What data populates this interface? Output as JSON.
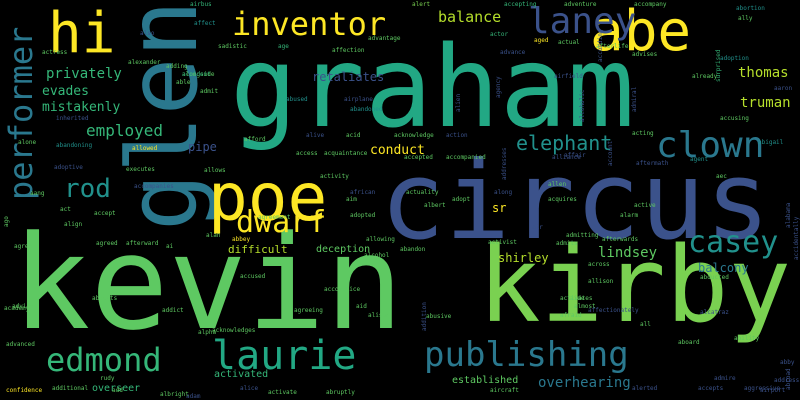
{
  "words": [
    {
      "t": "kevin",
      "c": "#5ec962"
    },
    {
      "t": "graham",
      "c": "#22a884"
    },
    {
      "t": "circus",
      "c": "#3b528b"
    },
    {
      "t": "kirby",
      "c": "#7ad151"
    },
    {
      "t": "glen",
      "c": "#2a788e"
    },
    {
      "t": "poe",
      "c": "#fde725"
    },
    {
      "t": "abe",
      "c": "#fde725"
    },
    {
      "t": "hi",
      "c": "#fde725"
    },
    {
      "t": "inventor",
      "c": "#fde725"
    },
    {
      "t": "laney",
      "c": "#3b528b"
    },
    {
      "t": "performer",
      "c": "#2a788e"
    },
    {
      "t": "publishing",
      "c": "#2a788e"
    },
    {
      "t": "laurie",
      "c": "#22a884"
    },
    {
      "t": "edmond",
      "c": "#35b779"
    },
    {
      "t": "casey",
      "c": "#21918c"
    },
    {
      "t": "clown",
      "c": "#2a788e"
    },
    {
      "t": "dwarf",
      "c": "#fde725"
    },
    {
      "t": "rod",
      "c": "#21918c"
    },
    {
      "t": "elephant",
      "c": "#21918c"
    },
    {
      "t": "employed",
      "c": "#35b779"
    },
    {
      "t": "balance",
      "c": "#b5de2b"
    },
    {
      "t": "privately",
      "c": "#35b779"
    },
    {
      "t": "thomas",
      "c": "#b5de2b"
    },
    {
      "t": "truman",
      "c": "#b5de2b"
    },
    {
      "t": "evades",
      "c": "#35b779"
    },
    {
      "t": "mistakenly",
      "c": "#35b779"
    },
    {
      "t": "retaliates",
      "c": "#3b528b"
    },
    {
      "t": "conduct",
      "c": "#fde725"
    },
    {
      "t": "lindsey",
      "c": "#5ec962"
    },
    {
      "t": "shirley",
      "c": "#b5de2b"
    },
    {
      "t": "overhearing",
      "c": "#2a788e"
    },
    {
      "t": "balcony",
      "c": "#2a788e"
    },
    {
      "t": "sr",
      "c": "#fde725"
    },
    {
      "t": "pipe",
      "c": "#3b528b"
    },
    {
      "t": "deception",
      "c": "#5ec962"
    },
    {
      "t": "difficult",
      "c": "#b5de2b"
    },
    {
      "t": "established",
      "c": "#5ec962"
    },
    {
      "t": "activated",
      "c": "#35b779"
    },
    {
      "t": "overseer",
      "c": "#35b779"
    },
    {
      "t": "alert",
      "c": "#7ad151"
    },
    {
      "t": "accepting",
      "c": "#35b779"
    },
    {
      "t": "adventure",
      "c": "#5ec962"
    },
    {
      "t": "accompany",
      "c": "#5ec962"
    },
    {
      "t": "abortion",
      "c": "#21918c"
    },
    {
      "t": "ally",
      "c": "#5ec962"
    },
    {
      "t": "airbus",
      "c": "#35b779"
    },
    {
      "t": "affect",
      "c": "#21918c"
    },
    {
      "t": "also",
      "c": "#3b528b"
    },
    {
      "t": "alongside",
      "c": "#5ec962"
    },
    {
      "t": "sadistic",
      "c": "#5ec962"
    },
    {
      "t": "age",
      "c": "#35b779"
    },
    {
      "t": "affection",
      "c": "#5ec962"
    },
    {
      "t": "advantage",
      "c": "#5ec962"
    },
    {
      "t": "actor",
      "c": "#35b779"
    },
    {
      "t": "aged",
      "c": "#fde725"
    },
    {
      "t": "actual",
      "c": "#5ec962"
    },
    {
      "t": "afterlife",
      "c": "#5ec962"
    },
    {
      "t": "advises",
      "c": "#5ec962"
    },
    {
      "t": "advance",
      "c": "#3b528b"
    },
    {
      "t": "actress",
      "c": "#5ec962"
    },
    {
      "t": "alexander",
      "c": "#5ec962"
    },
    {
      "t": "adding",
      "c": "#5ec962"
    },
    {
      "t": "able",
      "c": "#5ec962"
    },
    {
      "t": "accident",
      "c": "#35b779"
    },
    {
      "t": "airfield",
      "c": "#3b528b"
    },
    {
      "t": "already",
      "c": "#5ec962"
    },
    {
      "t": "adoption",
      "c": "#21918c"
    },
    {
      "t": "admit",
      "c": "#5ec962"
    },
    {
      "t": "abused",
      "c": "#21918c"
    },
    {
      "t": "airplane",
      "c": "#3b528b"
    },
    {
      "t": "abandoned",
      "c": "#21918c"
    },
    {
      "t": "inherited",
      "c": "#3b528b"
    },
    {
      "t": "surprised",
      "c": "#35b779"
    },
    {
      "t": "accusing",
      "c": "#5ec962"
    },
    {
      "t": "abigail",
      "c": "#21918c"
    },
    {
      "t": "alone",
      "c": "#5ec962"
    },
    {
      "t": "abandoning",
      "c": "#21918c"
    },
    {
      "t": "allowed",
      "c": "#fde725"
    },
    {
      "t": "alive",
      "c": "#3b528b"
    },
    {
      "t": "acid",
      "c": "#5ec962"
    },
    {
      "t": "acknowledge",
      "c": "#5ec962"
    },
    {
      "t": "action",
      "c": "#3b528b"
    },
    {
      "t": "acting",
      "c": "#5ec962"
    },
    {
      "t": "afford",
      "c": "#5ec962"
    },
    {
      "t": "access",
      "c": "#5ec962"
    },
    {
      "t": "acquaintance",
      "c": "#5ec962"
    },
    {
      "t": "accepted",
      "c": "#5ec962"
    },
    {
      "t": "accompanied",
      "c": "#5ec962"
    },
    {
      "t": "alliance",
      "c": "#3b528b"
    },
    {
      "t": "affair",
      "c": "#3b528b"
    },
    {
      "t": "aftermath",
      "c": "#3b528b"
    },
    {
      "t": "agent",
      "c": "#21918c"
    },
    {
      "t": "adoptive",
      "c": "#3b528b"
    },
    {
      "t": "executes",
      "c": "#5ec962"
    },
    {
      "t": "allows",
      "c": "#5ec962"
    },
    {
      "t": "activity",
      "c": "#5ec962"
    },
    {
      "t": "along",
      "c": "#3b528b"
    },
    {
      "t": "allen",
      "c": "#5ec962"
    },
    {
      "t": "aec",
      "c": "#5ec962"
    },
    {
      "t": "accompanies",
      "c": "#3b528b"
    },
    {
      "t": "african",
      "c": "#3b528b"
    },
    {
      "t": "actuality",
      "c": "#5ec962"
    },
    {
      "t": "aang",
      "c": "#5ec962"
    },
    {
      "t": "aim",
      "c": "#5ec962"
    },
    {
      "t": "adopt",
      "c": "#5ec962"
    },
    {
      "t": "acquires",
      "c": "#5ec962"
    },
    {
      "t": "active",
      "c": "#5ec962"
    },
    {
      "t": "act",
      "c": "#5ec962"
    },
    {
      "t": "accept",
      "c": "#5ec962"
    },
    {
      "t": "agreement",
      "c": "#5ec962"
    },
    {
      "t": "adopted",
      "c": "#5ec962"
    },
    {
      "t": "albert",
      "c": "#5ec962"
    },
    {
      "t": "air",
      "c": "#3b528b"
    },
    {
      "t": "alarm",
      "c": "#5ec962"
    },
    {
      "t": "align",
      "c": "#5ec962"
    },
    {
      "t": "admitting",
      "c": "#5ec962"
    },
    {
      "t": "agreed",
      "c": "#5ec962"
    },
    {
      "t": "afterward",
      "c": "#5ec962"
    },
    {
      "t": "alan",
      "c": "#5ec962"
    },
    {
      "t": "allowing",
      "c": "#5ec962"
    },
    {
      "t": "activist",
      "c": "#5ec962"
    },
    {
      "t": "admits",
      "c": "#5ec962"
    },
    {
      "t": "afterwards",
      "c": "#5ec962"
    },
    {
      "t": "ago",
      "c": "#5ec962"
    },
    {
      "t": "agree",
      "c": "#5ec962"
    },
    {
      "t": "ai",
      "c": "#5ec962"
    },
    {
      "t": "abbey",
      "c": "#fde725"
    },
    {
      "t": "allow",
      "c": "#5ec962"
    },
    {
      "t": "accused",
      "c": "#5ec962"
    },
    {
      "t": "abandon",
      "c": "#5ec962"
    },
    {
      "t": "alcohol",
      "c": "#5ec962"
    },
    {
      "t": "across",
      "c": "#5ec962"
    },
    {
      "t": "allison",
      "c": "#5ec962"
    },
    {
      "t": "abducted",
      "c": "#5ec962"
    },
    {
      "t": "accomplice",
      "c": "#5ec962"
    },
    {
      "t": "aid",
      "c": "#5ec962"
    },
    {
      "t": "abusive",
      "c": "#5ec962"
    },
    {
      "t": "activates",
      "c": "#5ec962"
    },
    {
      "t": "aide",
      "c": "#5ec962"
    },
    {
      "t": "almost",
      "c": "#5ec962"
    },
    {
      "t": "advice",
      "c": "#5ec962"
    },
    {
      "t": "abducts",
      "c": "#5ec962"
    },
    {
      "t": "academy",
      "c": "#5ec962"
    },
    {
      "t": "addict",
      "c": "#5ec962"
    },
    {
      "t": "agreeing",
      "c": "#5ec962"
    },
    {
      "t": "alison",
      "c": "#5ec962"
    },
    {
      "t": "afraid",
      "c": "#5ec962"
    },
    {
      "t": "affectionately",
      "c": "#3b528b"
    },
    {
      "t": "all",
      "c": "#5ec962"
    },
    {
      "t": "advanced",
      "c": "#5ec962"
    },
    {
      "t": "acknowledges",
      "c": "#5ec962"
    },
    {
      "t": "alpha",
      "c": "#5ec962"
    },
    {
      "t": "aboard",
      "c": "#5ec962"
    },
    {
      "t": "ability",
      "c": "#5ec962"
    },
    {
      "t": "rudy",
      "c": "#5ec962"
    },
    {
      "t": "confidence",
      "c": "#fde725"
    },
    {
      "t": "additional",
      "c": "#5ec962"
    },
    {
      "t": "add",
      "c": "#5ec962"
    },
    {
      "t": "albright",
      "c": "#5ec962"
    },
    {
      "t": "activate",
      "c": "#5ec962"
    },
    {
      "t": "abruptly",
      "c": "#5ec962"
    },
    {
      "t": "aircraft",
      "c": "#5ec962"
    },
    {
      "t": "alerted",
      "c": "#3b528b"
    },
    {
      "t": "accepts",
      "c": "#3b528b"
    },
    {
      "t": "aggressive",
      "c": "#3b528b"
    },
    {
      "t": "addition",
      "c": "#3b528b"
    },
    {
      "t": "addresses",
      "c": "#3b528b"
    },
    {
      "t": "alien",
      "c": "#3b528b"
    },
    {
      "t": "agency",
      "c": "#3b528b"
    },
    {
      "t": "according",
      "c": "#3b528b"
    },
    {
      "t": "account",
      "c": "#3b528b"
    },
    {
      "t": "alcoholic",
      "c": "#3b528b"
    },
    {
      "t": "admiral",
      "c": "#3b528b"
    },
    {
      "t": "aaron",
      "c": "#3b528b"
    },
    {
      "t": "alabama",
      "c": "#3b528b"
    },
    {
      "t": "abroad",
      "c": "#3b528b"
    },
    {
      "t": "address",
      "c": "#3b528b"
    },
    {
      "t": "airport",
      "c": "#3b528b"
    },
    {
      "t": "alcatraz",
      "c": "#3b528b"
    },
    {
      "t": "abby",
      "c": "#3b528b"
    },
    {
      "t": "accidentally",
      "c": "#3b528b"
    },
    {
      "t": "admire",
      "c": "#3b528b"
    },
    {
      "t": "alice",
      "c": "#3b528b"
    },
    {
      "t": "adam",
      "c": "#3b528b"
    }
  ]
}
